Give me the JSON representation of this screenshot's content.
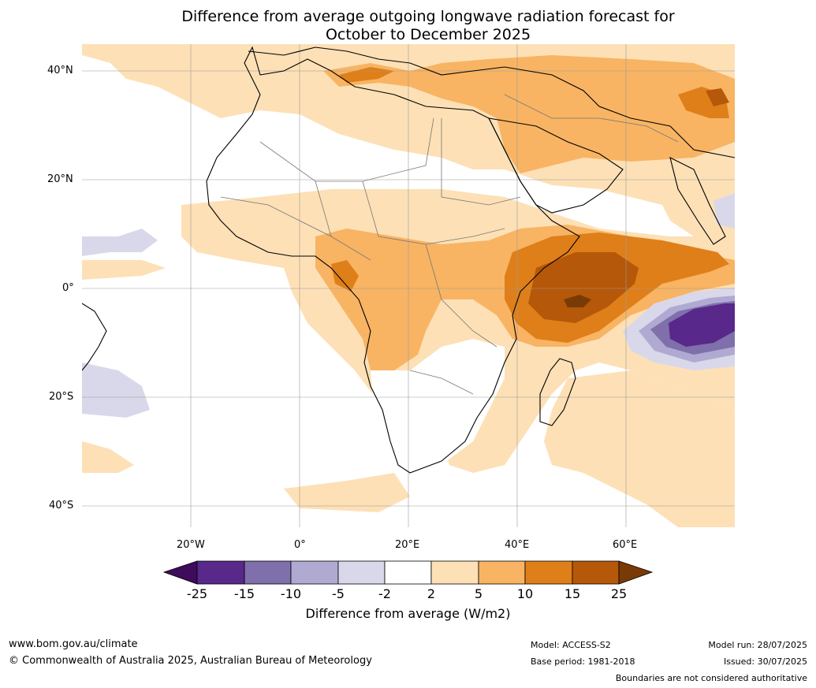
{
  "title_line1": "Difference from average outgoing longwave radiation forecast for",
  "title_line2": "October to December 2025",
  "lat_labels": [
    "40°N",
    "20°N",
    "0°",
    "20°S",
    "40°S"
  ],
  "lon_labels": [
    "20°W",
    "0°",
    "20°E",
    "40°E",
    "60°E"
  ],
  "colorbar": {
    "ticks": [
      "-25",
      "-15",
      "-10",
      "-5",
      "-2",
      "2",
      "5",
      "10",
      "15",
      "25"
    ],
    "colors": [
      "#3f0b5c",
      "#58288a",
      "#7f6fab",
      "#b0a9d1",
      "#d9d8eb",
      "#ffffff",
      "#fde0b6",
      "#f8b463",
      "#df7f19",
      "#b55809",
      "#7a3a06"
    ],
    "title": "Difference from average (W/m2)"
  },
  "footer": {
    "url": "www.bom.gov.au/climate",
    "copyright": "© Commonwealth of Australia 2025, Australian Bureau of Meteorology",
    "model": "Model: ACCESS-S2",
    "base_period": "Base period: 1981-2018",
    "model_run": "Model run: 28/07/2025",
    "issued": "Issued: 30/07/2025",
    "disclaimer": "Boundaries are not considered authoritative"
  }
}
